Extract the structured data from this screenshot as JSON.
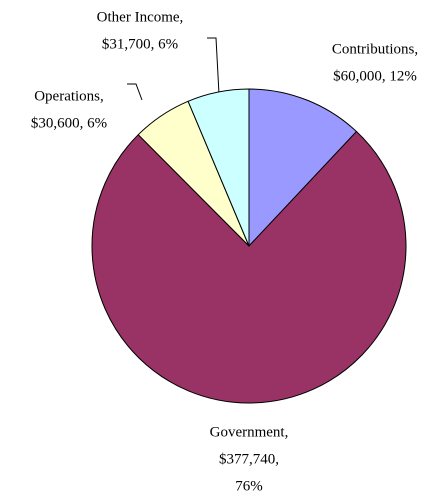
{
  "chart_data": {
    "type": "pie",
    "categories": [
      "Contributions,",
      "Government,",
      "Operations,",
      "Other Income,"
    ],
    "values": [
      60000,
      377740,
      30600,
      31700
    ],
    "value_labels": [
      [
        "$60,000, 12%"
      ],
      [
        "$377,740,",
        "76%"
      ],
      [
        "$30,600, 6%"
      ],
      [
        "$31,700, 6%"
      ]
    ],
    "colors": [
      "#9999ff",
      "#993366",
      "#ffffcc",
      "#ccffff"
    ]
  }
}
